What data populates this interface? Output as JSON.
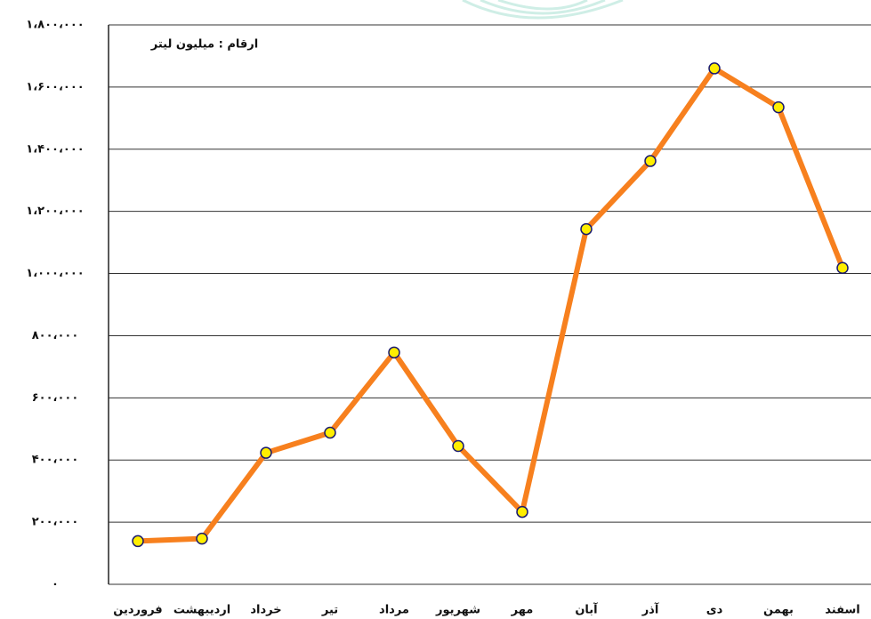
{
  "chart_data": {
    "type": "line",
    "annotation": "ارقام : میلیون لیتر",
    "categories": [
      "فروردین",
      "اردیبهشت",
      "خرداد",
      "تیر",
      "مرداد",
      "شهریور",
      "مهر",
      "آبان",
      "آذر",
      "دی",
      "بهمن",
      "اسفند"
    ],
    "series": [
      {
        "color": "#f7801e",
        "values": [
          139000,
          147000,
          423000,
          488000,
          746000,
          445000,
          233000,
          1143000,
          1362000,
          1660000,
          1535000,
          1018000
        ]
      }
    ],
    "marker_color": "#ffee00",
    "ylim": [
      0,
      1800000
    ],
    "yticks": [
      {
        "value": 0,
        "label": "۰"
      },
      {
        "value": 200000,
        "label": "۲۰۰،۰۰۰"
      },
      {
        "value": 400000,
        "label": "۴۰۰،۰۰۰"
      },
      {
        "value": 600000,
        "label": "۶۰۰،۰۰۰"
      },
      {
        "value": 800000,
        "label": "۸۰۰،۰۰۰"
      },
      {
        "value": 1000000,
        "label": "۱،۰۰۰،۰۰۰"
      },
      {
        "value": 1200000,
        "label": "۱،۲۰۰،۰۰۰"
      },
      {
        "value": 1400000,
        "label": "۱،۴۰۰،۰۰۰"
      },
      {
        "value": 1600000,
        "label": "۱،۶۰۰،۰۰۰"
      },
      {
        "value": 1800000,
        "label": "۱،۸۰۰،۰۰۰"
      }
    ],
    "grid": true
  }
}
